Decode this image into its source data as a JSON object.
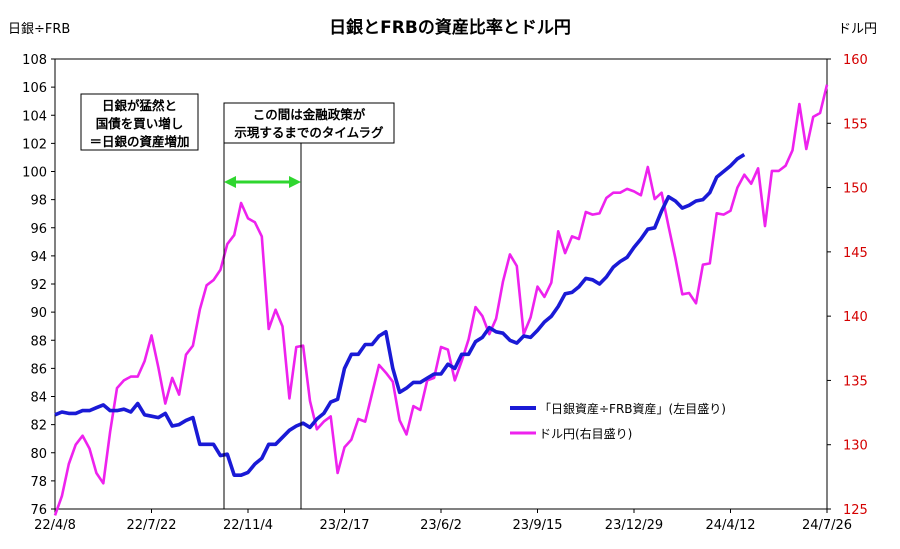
{
  "chart_data": {
    "type": "line",
    "title": "日銀とFRBの資産比率とドル円",
    "left_axis_label": "日銀÷FRB",
    "right_axis_label": "ドル円",
    "x_ticks": [
      "22/4/8",
      "22/7/22",
      "22/11/4",
      "23/2/17",
      "23/6/2",
      "23/9/15",
      "23/12/29",
      "24/4/12",
      "24/7/26"
    ],
    "x_range": [
      0,
      112
    ],
    "left_ylim": [
      76,
      108
    ],
    "left_yticks": [
      76,
      78,
      80,
      82,
      84,
      86,
      88,
      90,
      92,
      94,
      96,
      98,
      100,
      102,
      104,
      106,
      108
    ],
    "right_ylim": [
      125,
      160
    ],
    "right_yticks": [
      125,
      130,
      135,
      140,
      145,
      150,
      155,
      160
    ],
    "colors": {
      "ratio": "#1a1ad6",
      "usdjpy": "#ee22ee",
      "right_axis_text": "#d40000",
      "arrow": "#2fd62f"
    },
    "series": [
      {
        "name": "「日銀資産÷FRB資産」(左目盛り)",
        "axis": "left",
        "x": [
          0,
          1,
          2,
          3,
          4,
          5,
          6,
          7,
          8,
          9,
          10,
          11,
          12,
          13,
          14,
          15,
          16,
          17,
          18,
          19,
          20,
          21,
          22,
          23,
          24,
          25,
          26,
          27,
          28,
          29,
          30,
          31,
          32,
          33,
          34,
          35,
          36,
          37,
          38,
          39,
          40,
          41,
          42,
          43,
          44,
          45,
          46,
          47,
          48,
          49,
          50,
          51,
          52,
          53,
          54,
          55,
          56,
          57,
          58,
          59,
          60,
          61,
          62,
          63,
          64,
          65,
          66,
          67,
          68,
          69,
          70,
          71,
          72,
          73,
          74,
          75,
          76,
          77,
          78,
          79,
          80,
          81,
          82,
          83,
          84,
          85,
          86,
          87,
          88,
          89,
          90,
          91,
          92,
          93,
          94,
          95,
          96,
          97,
          98,
          99,
          100
        ],
        "values": [
          82.7,
          82.9,
          82.8,
          82.8,
          83.0,
          83.0,
          83.2,
          83.4,
          83.0,
          83.0,
          83.1,
          82.9,
          83.5,
          82.7,
          82.6,
          82.5,
          82.8,
          81.9,
          82.0,
          82.3,
          82.5,
          80.6,
          80.6,
          80.6,
          79.8,
          79.9,
          78.4,
          78.4,
          78.6,
          79.2,
          79.6,
          80.6,
          80.6,
          81.1,
          81.6,
          81.9,
          82.1,
          81.8,
          82.4,
          82.8,
          83.6,
          83.8,
          86.0,
          87.0,
          87.0,
          87.7,
          87.7,
          88.3,
          88.6,
          86.0,
          84.3,
          84.6,
          85.0,
          85.0,
          85.3,
          85.6,
          85.6,
          86.3,
          86.0,
          87.0,
          87.0,
          87.9,
          88.2,
          88.9,
          88.6,
          88.5,
          88.0,
          87.8,
          88.3,
          88.2,
          88.7,
          89.3,
          89.7,
          90.4,
          91.3,
          91.4,
          91.8,
          92.4,
          92.3,
          92.0,
          92.5,
          93.2,
          93.6,
          93.9,
          94.6,
          95.2,
          95.9,
          96.0,
          97.2,
          98.2,
          97.9,
          97.4,
          97.6,
          97.9,
          98.0,
          98.5,
          99.6,
          100.0,
          100.4,
          100.9,
          101.2
        ],
        "comment_values_note": "left axis"
      },
      {
        "name": "ドル円(右目盛り)",
        "axis": "right",
        "x": [
          0,
          1,
          2,
          3,
          4,
          5,
          6,
          7,
          8,
          9,
          10,
          11,
          12,
          13,
          14,
          15,
          16,
          17,
          18,
          19,
          20,
          21,
          22,
          23,
          24,
          25,
          26,
          27,
          28,
          29,
          30,
          31,
          32,
          33,
          34,
          35,
          36,
          37,
          38,
          39,
          40,
          41,
          42,
          43,
          44,
          45,
          46,
          47,
          48,
          49,
          50,
          51,
          52,
          53,
          54,
          55,
          56,
          57,
          58,
          59,
          60,
          61,
          62,
          63,
          64,
          65,
          66,
          67,
          68,
          69,
          70,
          71,
          72,
          73,
          74,
          75,
          76,
          77,
          78,
          79,
          80,
          81,
          82,
          83,
          84,
          85,
          86,
          87,
          88,
          89,
          90,
          91,
          92,
          93,
          94,
          95,
          96,
          97,
          98,
          99,
          100,
          101,
          102,
          103,
          104,
          105,
          106,
          107,
          108,
          109,
          110,
          111,
          112
        ],
        "values": [
          124.5,
          126.0,
          128.5,
          130.0,
          130.7,
          129.7,
          127.8,
          127.0,
          131.0,
          134.4,
          135.0,
          135.3,
          135.3,
          136.5,
          138.5,
          136.0,
          133.2,
          135.2,
          133.9,
          137.0,
          137.7,
          140.5,
          142.4,
          142.8,
          143.6,
          145.6,
          146.3,
          148.8,
          147.6,
          147.3,
          146.2,
          139.0,
          140.5,
          139.2,
          133.6,
          137.6,
          137.7,
          133.4,
          131.2,
          131.8,
          132.2,
          127.8,
          129.8,
          130.4,
          132.0,
          131.8,
          134.0,
          136.2,
          135.6,
          134.9,
          131.9,
          130.8,
          133.0,
          132.7,
          135.0,
          135.2,
          137.6,
          137.4,
          135.0,
          136.5,
          138.2,
          140.7,
          140.0,
          138.6,
          139.8,
          142.7,
          144.8,
          143.9,
          138.6,
          139.9,
          142.3,
          141.5,
          142.6,
          146.6,
          144.9,
          146.2,
          146.0,
          148.1,
          147.9,
          148.0,
          149.2,
          149.6,
          149.6,
          149.9,
          149.7,
          149.4,
          151.6,
          149.1,
          149.6,
          147.0,
          144.5,
          141.7,
          141.8,
          141.0,
          144.0,
          144.1,
          148.0,
          147.9,
          148.2,
          150.0,
          151.0,
          150.3,
          151.5,
          147.0,
          151.3,
          151.3,
          151.7,
          152.9,
          156.5,
          153.0,
          155.5,
          155.8,
          158.0
        ]
      }
    ],
    "annotations": [
      {
        "lines": [
          "日銀が猛然と",
          "国債を買い増し",
          "＝日銀の資産増加"
        ]
      },
      {
        "lines": [
          "この間は金融政策が",
          "示現するまでのタイムラグ"
        ]
      }
    ],
    "legend_position": "right-middle"
  }
}
